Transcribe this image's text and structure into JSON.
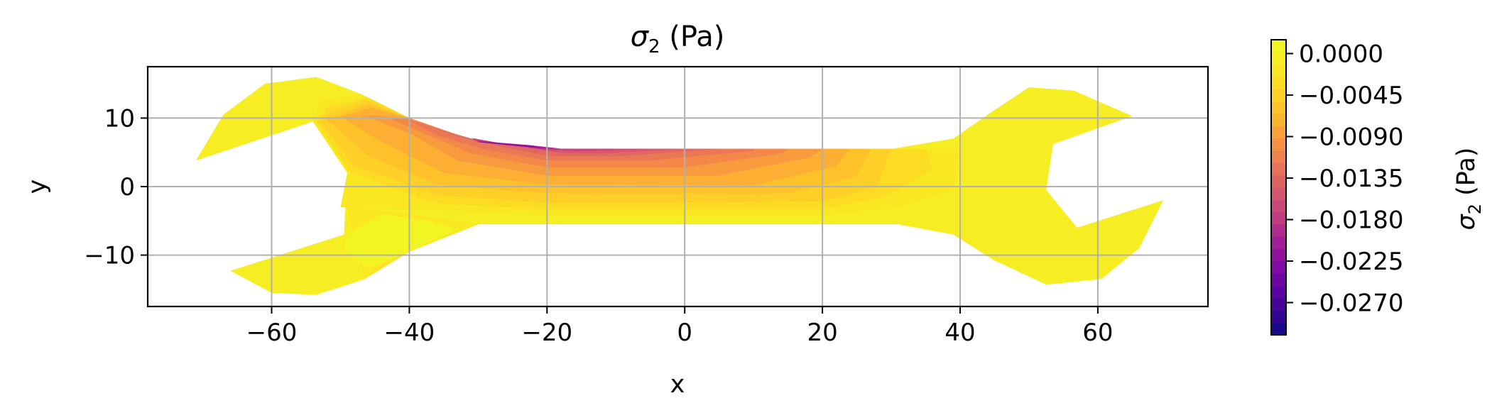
{
  "chart_data": {
    "type": "contour",
    "title": {
      "symbol": "σ",
      "sub": "2",
      "unit": "(Pa)"
    },
    "xlabel": "x",
    "ylabel": "y",
    "xlim": [
      -78,
      76
    ],
    "ylim": [
      -17.5,
      17.5
    ],
    "xticks": [
      -60,
      -40,
      -20,
      0,
      20,
      40,
      60
    ],
    "yticks": [
      -10,
      0,
      10
    ],
    "xtick_labels": [
      "−60",
      "−40",
      "−20",
      "0",
      "20",
      "40",
      "60"
    ],
    "ytick_labels": [
      "−10",
      "0",
      "10"
    ],
    "grid": true,
    "colormap": "plasma",
    "colorbar": {
      "label": {
        "symbol": "σ",
        "sub": "2",
        "unit": "(Pa)"
      },
      "range": [
        -0.0305,
        0.0015
      ],
      "ticks": [
        0.0,
        -0.0045,
        -0.009,
        -0.0135,
        -0.018,
        -0.0225,
        -0.027
      ],
      "tick_labels": [
        "0.0000",
        "−0.0045",
        "−0.0090",
        "−0.0135",
        "−0.0180",
        "−0.0225",
        "−0.0270"
      ]
    },
    "field": {
      "outline": [
        [
          -71,
          3.8
        ],
        [
          -67,
          10.5
        ],
        [
          -61,
          15
        ],
        [
          -53.5,
          16
        ],
        [
          -47,
          13.5
        ],
        [
          -40,
          10
        ],
        [
          -30,
          6.5
        ],
        [
          -20,
          5.5
        ],
        [
          30,
          5.5
        ],
        [
          39,
          7
        ],
        [
          44,
          10.5
        ],
        [
          50,
          14.5
        ],
        [
          56.5,
          14
        ],
        [
          65,
          10.3
        ],
        [
          53.5,
          6.2
        ],
        [
          52.5,
          -0.5
        ],
        [
          57,
          -6
        ],
        [
          69.5,
          -2
        ],
        [
          66,
          -9
        ],
        [
          60.5,
          -13.5
        ],
        [
          52.5,
          -14.3
        ],
        [
          45,
          -10.8
        ],
        [
          39,
          -7
        ],
        [
          31,
          -5.5
        ],
        [
          -30,
          -5.5
        ],
        [
          -40,
          -9.5
        ],
        [
          -46.5,
          -13.5
        ],
        [
          -53.5,
          -15.8
        ],
        [
          -60,
          -15.5
        ],
        [
          -66,
          -12.3
        ],
        [
          -49.5,
          -7
        ],
        [
          -49,
          2
        ],
        [
          -54,
          9.5
        ]
      ],
      "background_value": -0.0005,
      "contour_levels": [
        {
          "value": -0.0015,
          "region": [
            [
              -54,
              9.5
            ],
            [
              -49,
              2
            ],
            [
              -50,
              -3
            ],
            [
              -36,
              -3.5
            ],
            [
              -20,
              -4.2
            ],
            [
              20,
              -4.2
            ],
            [
              31,
              -3
            ],
            [
              39,
              -0.5
            ],
            [
              40,
              5.5
            ],
            [
              30,
              5.5
            ],
            [
              -20,
              5.5
            ],
            [
              -30,
              6.5
            ],
            [
              -40,
              10
            ],
            [
              -47,
              13.5
            ],
            [
              -53,
              12.5
            ]
          ]
        },
        {
          "value": -0.003,
          "region": [
            [
              -53.5,
              9.5
            ],
            [
              -48.5,
              2
            ],
            [
              -36,
              -2.5
            ],
            [
              -20,
              -3.3
            ],
            [
              20,
              -3.3
            ],
            [
              29,
              -1.5
            ],
            [
              36,
              2.5
            ],
            [
              35,
              5.5
            ],
            [
              30,
              5.5
            ],
            [
              -20,
              5.5
            ],
            [
              -30,
              6.5
            ],
            [
              -40,
              10
            ],
            [
              -46,
              13
            ],
            [
              -52,
              11.5
            ]
          ]
        },
        {
          "value": -0.0045,
          "region": [
            [
              -53,
              9.5
            ],
            [
              -48,
              3
            ],
            [
              -36,
              -1.2
            ],
            [
              -20,
              -2.4
            ],
            [
              20,
              -2.2
            ],
            [
              28,
              0
            ],
            [
              30,
              5.5
            ],
            [
              -20,
              5.5
            ],
            [
              -30,
              6.5
            ],
            [
              -40,
              10
            ],
            [
              -46,
              12.5
            ],
            [
              -51,
              11
            ]
          ]
        },
        {
          "value": -0.006,
          "region": [
            [
              -52,
              9.8
            ],
            [
              -46,
              4.5
            ],
            [
              -36,
              0.3
            ],
            [
              -20,
              -1
            ],
            [
              15,
              -1
            ],
            [
              25,
              1.5
            ],
            [
              27,
              5.5
            ],
            [
              -20,
              5.5
            ],
            [
              -30,
              6.5
            ],
            [
              -40,
              10
            ],
            [
              -46,
              12
            ]
          ]
        },
        {
          "value": -0.0075,
          "region": [
            [
              -50,
              10.2
            ],
            [
              -44,
              6.5
            ],
            [
              -35,
              2
            ],
            [
              -20,
              0.3
            ],
            [
              10,
              0.2
            ],
            [
              22,
              3
            ],
            [
              24,
              5.5
            ],
            [
              -20,
              5.5
            ],
            [
              -30,
              6.5
            ],
            [
              -40,
              10
            ],
            [
              -45.5,
              11.5
            ]
          ]
        },
        {
          "value": -0.009,
          "region": [
            [
              -47,
              10.5
            ],
            [
              -40,
              7.8
            ],
            [
              -33,
              3.8
            ],
            [
              -20,
              1.6
            ],
            [
              5,
              1.6
            ],
            [
              18,
              4.2
            ],
            [
              20,
              5.5
            ],
            [
              -20,
              5.5
            ],
            [
              -30,
              6.5
            ],
            [
              -40,
              10
            ]
          ]
        },
        {
          "value": -0.0105,
          "region": [
            [
              -43,
              10
            ],
            [
              -38,
              7.8
            ],
            [
              -31,
              4.8
            ],
            [
              -20,
              2.8
            ],
            [
              0,
              2.8
            ],
            [
              14,
              4.8
            ],
            [
              15,
              5.5
            ],
            [
              -20,
              5.5
            ],
            [
              -30,
              6.5
            ],
            [
              -40,
              10
            ]
          ]
        },
        {
          "value": -0.012,
          "region": [
            [
              -40,
              9.6
            ],
            [
              -36,
              7.5
            ],
            [
              -29,
              5.4
            ],
            [
              -20,
              3.8
            ],
            [
              -5,
              3.8
            ],
            [
              10,
              5.2
            ],
            [
              10,
              5.5
            ],
            [
              -20,
              5.5
            ],
            [
              -30,
              6.5
            ],
            [
              -38,
              9.2
            ]
          ]
        },
        {
          "value": -0.0135,
          "region": [
            [
              -37,
              8.7
            ],
            [
              -33,
              7.3
            ],
            [
              -27,
              5.9
            ],
            [
              -20,
              4.5
            ],
            [
              -10,
              4.4
            ],
            [
              5,
              5.5
            ],
            [
              -20,
              5.5
            ],
            [
              -30,
              6.5
            ]
          ]
        },
        {
          "value": -0.015,
          "region": [
            [
              -34,
              7.9
            ],
            [
              -30,
              6.7
            ],
            [
              -24,
              5.8
            ],
            [
              -18,
              4.95
            ],
            [
              -12,
              4.85
            ],
            [
              0,
              5.5
            ],
            [
              -20,
              5.5
            ],
            [
              -30,
              6.5
            ]
          ]
        },
        {
          "value": -0.0165,
          "region": [
            [
              -31,
              7.1
            ],
            [
              -26,
              6.2
            ],
            [
              -20,
              5.3
            ],
            [
              -15,
              5.15
            ],
            [
              -5,
              5.5
            ],
            [
              -20,
              5.5
            ],
            [
              -30,
              6.5
            ]
          ]
        },
        {
          "value": -0.018,
          "region": [
            [
              -30,
              6.75
            ],
            [
              -24,
              6.05
            ],
            [
              -20,
              5.4
            ],
            [
              -10,
              5.5
            ],
            [
              -20,
              5.5
            ],
            [
              -30,
              6.5
            ]
          ]
        },
        {
          "value": -0.0195,
          "region": [
            [
              -30,
              6.65
            ],
            [
              -23,
              6.1
            ],
            [
              -18,
              5.55
            ],
            [
              -20,
              5.5
            ],
            [
              -30,
              6.5
            ]
          ]
        },
        {
          "value": -0.021,
          "region": [
            [
              -30,
              6.58
            ],
            [
              -22,
              6.0
            ],
            [
              -20,
              5.5
            ],
            [
              -30,
              6.5
            ]
          ]
        },
        {
          "value": -0.0225,
          "region": [
            [
              -29.5,
              6.55
            ],
            [
              -23,
              5.95
            ],
            [
              -20,
              5.5
            ],
            [
              -30,
              6.5
            ]
          ]
        },
        {
          "value": -0.0015,
          "region": [
            [
              -49,
              -3
            ],
            [
              -40,
              -4
            ],
            [
              -30,
              -5.5
            ],
            [
              -40,
              -9.5
            ],
            [
              -46.5,
              -13.5
            ],
            [
              -48,
              -8
            ]
          ]
        }
      ],
      "highlight_regions": [
        {
          "value": 0.0008,
          "region": [
            [
              -49,
              -7
            ],
            [
              -44,
              -4
            ],
            [
              -37,
              -5
            ],
            [
              -33,
              -6.2
            ],
            [
              -40,
              -9.5
            ],
            [
              -46,
              -12
            ],
            [
              -49.5,
              -9
            ]
          ]
        }
      ]
    }
  }
}
